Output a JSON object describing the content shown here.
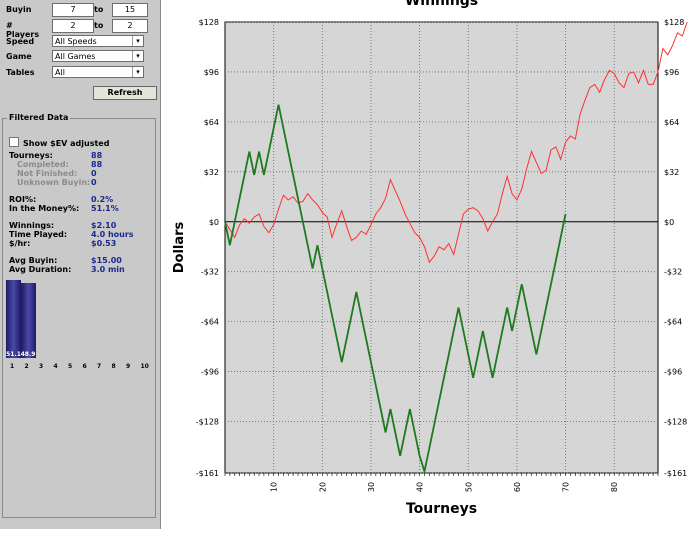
{
  "filters": {
    "buyin_label": "Buyin",
    "buyin_min": "7",
    "buyin_to": "to",
    "buyin_max": "15",
    "players_label": "# Players",
    "players_min": "2",
    "players_to": "to",
    "players_max": "2",
    "speed_label": "Speed",
    "speed_value": "All Speeds",
    "game_label": "Game",
    "game_value": "All Games",
    "tables_label": "Tables",
    "tables_value": "All",
    "refresh_label": "Refresh"
  },
  "filtered": {
    "title": "Filtered Data",
    "ev_label": "Show $EV adjusted",
    "tourneys_label": "Tourneys:",
    "tourneys_value": "88",
    "completed_label": "Completed:",
    "completed_value": "88",
    "not_finished_label": "Not Finished:",
    "not_finished_value": "0",
    "unknown_buyin_label": "Unknown Buyin:",
    "unknown_buyin_value": "0",
    "roi_label": "ROI%:",
    "roi_value": "0.2%",
    "itm_label": "In the Money%:",
    "itm_value": "51.1%",
    "winnings_label": "Winnings:",
    "winnings_value": "$2.10",
    "time_label": "Time Played:",
    "time_value": "4.0 hours",
    "hr_label": "$/hr:",
    "hr_value": "$0.53",
    "avg_buyin_label": "Avg Buyin:",
    "avg_buyin_value": "$15.00",
    "avg_dur_label": "Avg Duration:",
    "avg_dur_value": "3.0 min"
  },
  "histogram": {
    "bars": [
      {
        "position": 1,
        "value": 51.1,
        "label": "51.1"
      },
      {
        "position": 2,
        "value": 48.9,
        "label": "48.9"
      }
    ],
    "ticks": [
      "1",
      "2",
      "3",
      "4",
      "5",
      "6",
      "7",
      "8",
      "9",
      "10"
    ]
  },
  "chart_data": {
    "type": "line",
    "title": "Winnings",
    "xlabel": "Tourneys",
    "ylabel": "Dollars",
    "xlim": [
      0,
      89
    ],
    "ylim": [
      -161,
      128
    ],
    "x_ticks": [
      10,
      20,
      30,
      40,
      50,
      60,
      70,
      80
    ],
    "y_ticks": [
      {
        "v": 128,
        "l": "$128"
      },
      {
        "v": 96,
        "l": "$96"
      },
      {
        "v": 64,
        "l": "$64"
      },
      {
        "v": 32,
        "l": "$32"
      },
      {
        "v": 0,
        "l": "$0"
      },
      {
        "v": -32,
        "l": "-$32"
      },
      {
        "v": -64,
        "l": "-$64"
      },
      {
        "v": -96,
        "l": "-$96"
      },
      {
        "v": -128,
        "l": "-$128"
      },
      {
        "v": -161,
        "l": "-$161"
      }
    ],
    "grid": true,
    "colors": {
      "background": "#d6d6d6",
      "red": "#ff3030",
      "green": "#1e7a1e"
    },
    "series": [
      {
        "color": "red",
        "values": [
          0,
          -5,
          -10,
          -2,
          2,
          -1,
          3,
          5,
          -3,
          -7,
          -2,
          8,
          17,
          14,
          16,
          12,
          13,
          18,
          14,
          11,
          6,
          3,
          -10,
          -1,
          7,
          -3,
          -12,
          -10,
          -6,
          -8,
          -2,
          5,
          9,
          15,
          27,
          20,
          13,
          5,
          -1,
          -7,
          -10,
          -16,
          -26,
          -22,
          -16,
          -18,
          -14,
          -21,
          -8,
          5,
          8,
          9,
          7,
          2,
          -6,
          0,
          5,
          18,
          29,
          18,
          14,
          21,
          34,
          45,
          38,
          31,
          33,
          46,
          48,
          40,
          51,
          55,
          53,
          69,
          78,
          86,
          88,
          83,
          91,
          97,
          95,
          89,
          86,
          95,
          96,
          89,
          97,
          88,
          88,
          96,
          111,
          107,
          113,
          121,
          119,
          128
        ]
      },
      {
        "color": "green",
        "values": [
          0,
          -15,
          0,
          15,
          30,
          45,
          30,
          45,
          30,
          45,
          60,
          75,
          60,
          45,
          30,
          15,
          0,
          -15,
          -30,
          -15,
          -30,
          -45,
          -60,
          -75,
          -90,
          -75,
          -60,
          -45,
          -60,
          -75,
          -90,
          -105,
          -120,
          -135,
          -120,
          -135,
          -150,
          -135,
          -120,
          -135,
          -150,
          -160,
          -145,
          -130,
          -115,
          -100,
          -85,
          -70,
          -55,
          -70,
          -85,
          -100,
          -85,
          -70,
          -85,
          -100,
          -85,
          -70,
          -55,
          -70,
          -55,
          -40,
          -55,
          -70,
          -85,
          -70,
          -55,
          -40,
          -25,
          -10,
          5
        ]
      }
    ]
  }
}
